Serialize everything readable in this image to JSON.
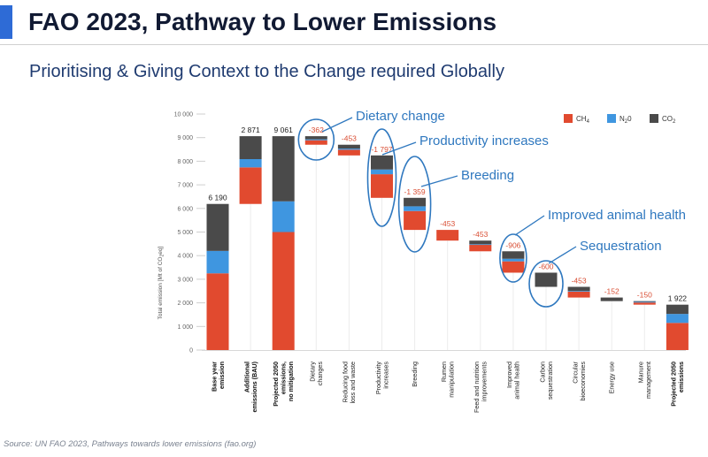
{
  "header": {
    "title": "FAO 2023, Pathway to Lower Emissions",
    "subtitle": "Prioritising & Giving Context to the Change required Globally",
    "source": "Source: UN FAO 2023, Pathways towards lower emissions (fao.org)"
  },
  "colors": {
    "ch4": "#e14a2f",
    "n2o": "#3f96e0",
    "co2": "#4a4a4a",
    "annotation": "#2f78bf",
    "reduction_label": "#d94f35",
    "total_label": "#222222"
  },
  "chart_data": {
    "type": "bar",
    "subtype": "waterfall",
    "ylabel_parts": [
      "Total emission [Mt of CO",
      "2",
      "eq]"
    ],
    "ylim": [
      0,
      10000
    ],
    "yticks": [
      0,
      1000,
      2000,
      3000,
      4000,
      5000,
      6000,
      7000,
      8000,
      9000,
      10000
    ],
    "ytick_labels": [
      "0",
      "1 000",
      "2 000",
      "3 000",
      "4 000",
      "5 000",
      "6 000",
      "7 000",
      "8 000",
      "9 000",
      "10 000"
    ],
    "legend": [
      {
        "key": "ch4",
        "base": "CH",
        "sub": "4"
      },
      {
        "key": "n2o",
        "base": "N",
        "sub": "2",
        "tail": "0"
      },
      {
        "key": "co2",
        "base": "CO",
        "sub": "2"
      }
    ],
    "legend_position": "top-right",
    "bars": [
      {
        "lines": [
          "Base year",
          "emission"
        ],
        "bold": true,
        "label": "6 190",
        "kind": "total",
        "bottom": 0,
        "segments": [
          {
            "gas": "ch4",
            "value": 3250
          },
          {
            "gas": "n2o",
            "value": 950
          },
          {
            "gas": "co2",
            "value": 1990
          }
        ]
      },
      {
        "lines": [
          "Additional",
          "emissions (BAU)"
        ],
        "bold": true,
        "label": "2 871",
        "kind": "total",
        "bottom": 6190,
        "segments": [
          {
            "gas": "ch4",
            "value": 1550
          },
          {
            "gas": "n2o",
            "value": 350
          },
          {
            "gas": "co2",
            "value": 971
          }
        ]
      },
      {
        "lines": [
          "Projected 2050",
          "emissions,",
          "no mitigation"
        ],
        "bold": true,
        "label": "9 061",
        "kind": "total",
        "bottom": 0,
        "segments": [
          {
            "gas": "ch4",
            "value": 5000
          },
          {
            "gas": "n2o",
            "value": 1300
          },
          {
            "gas": "co2",
            "value": 2761
          }
        ]
      },
      {
        "lines": [
          "Dietary",
          "changes"
        ],
        "bold": false,
        "label": "-362",
        "kind": "reduction",
        "bottom": 8699,
        "segments": [
          {
            "gas": "ch4",
            "value": 190
          },
          {
            "gas": "n2o",
            "value": 40
          },
          {
            "gas": "co2",
            "value": 132
          }
        ]
      },
      {
        "lines": [
          "Reducing food",
          "loss and waste"
        ],
        "bold": false,
        "label": "-453",
        "kind": "reduction",
        "bottom": 8246,
        "segments": [
          {
            "gas": "ch4",
            "value": 240
          },
          {
            "gas": "n2o",
            "value": 50
          },
          {
            "gas": "co2",
            "value": 163
          }
        ]
      },
      {
        "lines": [
          "Productivity",
          "increases"
        ],
        "bold": false,
        "label": "-1 797",
        "kind": "reduction",
        "bottom": 6449,
        "segments": [
          {
            "gas": "ch4",
            "value": 1000
          },
          {
            "gas": "n2o",
            "value": 200
          },
          {
            "gas": "co2",
            "value": 597
          }
        ]
      },
      {
        "lines": [
          "Breeding"
        ],
        "bold": false,
        "label": "-1 359",
        "kind": "reduction",
        "bottom": 5090,
        "segments": [
          {
            "gas": "ch4",
            "value": 800
          },
          {
            "gas": "n2o",
            "value": 200
          },
          {
            "gas": "co2",
            "value": 359
          }
        ]
      },
      {
        "lines": [
          "Rumen",
          "manipulation"
        ],
        "bold": false,
        "label": "-453",
        "kind": "reduction",
        "bottom": 4637,
        "segments": [
          {
            "gas": "ch4",
            "value": 453
          }
        ]
      },
      {
        "lines": [
          "Feed and nutrition",
          "improvements"
        ],
        "bold": false,
        "label": "-453",
        "kind": "reduction",
        "bottom": 4184,
        "segments": [
          {
            "gas": "ch4",
            "value": 280
          },
          {
            "gas": "n2o",
            "value": 20
          },
          {
            "gas": "co2",
            "value": 153
          }
        ]
      },
      {
        "lines": [
          "Improved",
          "animal health"
        ],
        "bold": false,
        "label": "-906",
        "kind": "reduction",
        "bottom": 3278,
        "segments": [
          {
            "gas": "ch4",
            "value": 480
          },
          {
            "gas": "n2o",
            "value": 110
          },
          {
            "gas": "co2",
            "value": 316
          }
        ]
      },
      {
        "lines": [
          "Carbon",
          "sequestration"
        ],
        "bold": false,
        "label": "-600",
        "kind": "reduction",
        "bottom": 2678,
        "segments": [
          {
            "gas": "co2",
            "value": 600
          }
        ]
      },
      {
        "lines": [
          "Circular",
          "bioeconomies"
        ],
        "bold": false,
        "label": "-453",
        "kind": "reduction",
        "bottom": 2225,
        "segments": [
          {
            "gas": "ch4",
            "value": 250
          },
          {
            "gas": "n2o",
            "value": 30
          },
          {
            "gas": "co2",
            "value": 173
          }
        ]
      },
      {
        "lines": [
          "Energy use"
        ],
        "bold": false,
        "label": "-152",
        "kind": "reduction",
        "bottom": 2073,
        "segments": [
          {
            "gas": "co2",
            "value": 152
          }
        ]
      },
      {
        "lines": [
          "Manure",
          "management"
        ],
        "bold": false,
        "label": "-150",
        "kind": "reduction",
        "bottom": 1923,
        "segments": [
          {
            "gas": "ch4",
            "value": 90
          },
          {
            "gas": "n2o",
            "value": 30
          },
          {
            "gas": "co2",
            "value": 30
          }
        ]
      },
      {
        "lines": [
          "Projected 2050",
          "emissions"
        ],
        "bold": true,
        "label": "1 922",
        "kind": "total",
        "bottom": 0,
        "segments": [
          {
            "gas": "ch4",
            "value": 1150
          },
          {
            "gas": "n2o",
            "value": 380
          },
          {
            "gas": "co2",
            "value": 392
          }
        ]
      }
    ],
    "annotations": [
      {
        "text": "Dietary change",
        "bar": 3
      },
      {
        "text": "Productivity increases",
        "bar": 5
      },
      {
        "text": "Breeding",
        "bar": 6
      },
      {
        "text": "Improved animal health",
        "bar": 9
      },
      {
        "text": "Sequestration",
        "bar": 10
      }
    ]
  }
}
